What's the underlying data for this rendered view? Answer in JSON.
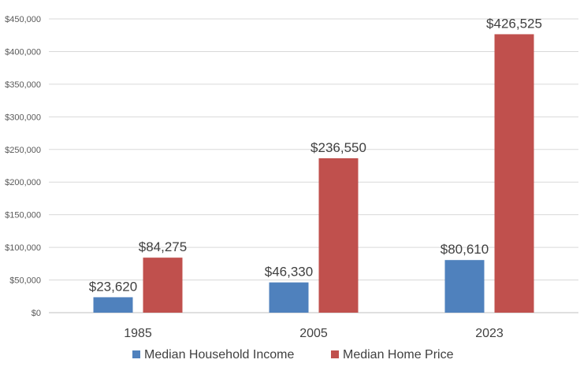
{
  "chart_data": {
    "type": "bar",
    "title": "",
    "xlabel": "",
    "ylabel": "",
    "categories": [
      "1985",
      "2005",
      "2023"
    ],
    "series": [
      {
        "name": "Median Household Income",
        "color": "#4f81bd",
        "values": [
          23620,
          46330,
          80610
        ],
        "labels": [
          "$23,620",
          "$46,330",
          "$80,610"
        ]
      },
      {
        "name": "Median Home Price",
        "color": "#c0504d",
        "values": [
          84275,
          236550,
          426525
        ],
        "labels": [
          "$84,275",
          "$236,550",
          "$426,525"
        ]
      }
    ],
    "ylim": [
      0,
      450000
    ],
    "yticks": [
      0,
      50000,
      100000,
      150000,
      200000,
      250000,
      300000,
      350000,
      400000,
      450000
    ],
    "ytick_labels": [
      "$0",
      "$50,000",
      "$100,000",
      "$150,000",
      "$200,000",
      "$250,000",
      "$300,000",
      "$350,000",
      "$400,000",
      "$450,000"
    ],
    "grid": true,
    "legend_position": "bottom-center"
  }
}
